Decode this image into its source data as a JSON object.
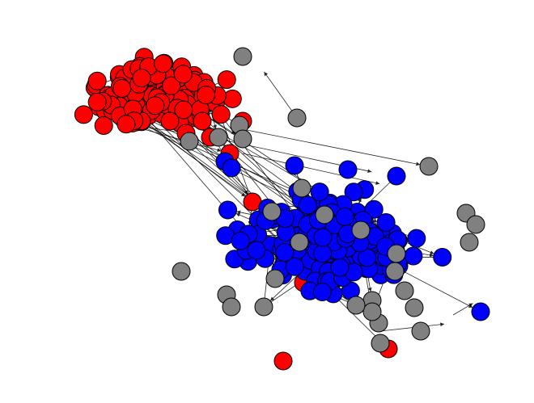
{
  "figure": {
    "type": "network-graph",
    "directed": true,
    "background": "#ffffff",
    "edge_color": "#000000",
    "node_outline": "#000000"
  },
  "groups": [
    {
      "name": "red",
      "color": "#ff0000",
      "node_count": 150
    },
    {
      "name": "blue",
      "color": "#0000ff",
      "node_count": 185
    },
    {
      "name": "gray",
      "color": "#808080",
      "node_count": 30
    }
  ]
}
